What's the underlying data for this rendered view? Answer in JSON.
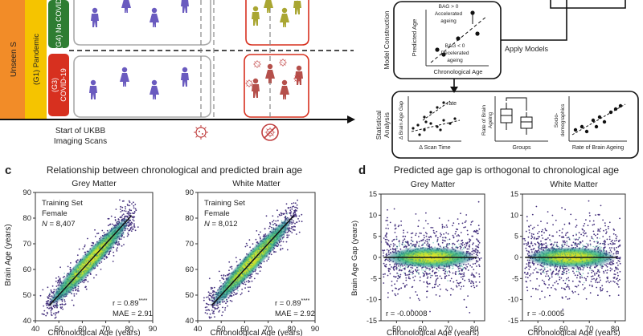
{
  "colors": {
    "orange": "#f28c28",
    "yellow": "#f5c400",
    "green": "#2e7d32",
    "red": "#d7301f",
    "person_blue": "#6a5bbf",
    "person_olive": "#a9a632",
    "person_red": "#b5504b",
    "virus": "#c04040",
    "viridis_dark": "#440154",
    "viridis_mid": "#21918c",
    "viridis_yellow": "#fde725"
  },
  "panel_a": {
    "unseen_label": "Unseen S",
    "g1_label": "(G1) Pandemic",
    "g4_label": "(G4) No COVID",
    "g3_label_1": "(G3)",
    "g3_label_2": "COVID-19",
    "start_label_1": "Start of UKBB",
    "start_label_2": "Imaging Scans"
  },
  "panel_b": {
    "model_construction": "Model Construction",
    "predicted_age": "Predicted Age",
    "chronological_age": "Chronological Age",
    "bag_pos_1": "BAG > 0",
    "bag_pos_2": "Accelerated",
    "bag_pos_3": "ageing",
    "bag_neg_1": "BAG < 0",
    "bag_neg_2": "Decelerated",
    "bag_neg_3": "ageing",
    "apply_models": "Apply Models",
    "statistical_analysis_1": "Statistical",
    "statistical_analysis_2": "Analysis",
    "delta_gap": "Δ Brain Age Gap",
    "rate": "rate",
    "delta_time": "Δ Scan Time",
    "rate_of_brain_1": "Rate of Brain",
    "rate_of_brain_2": "Ageing",
    "groups": "Groups",
    "socio_1": "Socio-",
    "socio_2": "demographics",
    "rate_of_brain_ageing": "Rate of Brain Ageing"
  },
  "panel_c": {
    "letter": "c",
    "title": "Relationship between chronological and predicted brain age",
    "ylabel": "Brain Age (years)",
    "xlabel": "Chronological Age (years)",
    "yticks": [
      "90",
      "80",
      "70",
      "60",
      "50",
      "40"
    ],
    "xticks": [
      "40",
      "50",
      "60",
      "70",
      "80",
      "90"
    ],
    "grey": {
      "subtitle": "Grey Matter",
      "ann_1": "Training Set",
      "ann_2": "Female",
      "ann_n_label": "N",
      "ann_n_value": " = 8,407",
      "r_text": "r = 0.89",
      "stars": "****",
      "mae_text": "MAE = 2.91"
    },
    "white": {
      "subtitle": "White Matter",
      "ann_1": "Training Set",
      "ann_2": "Female",
      "ann_n_label": "N",
      "ann_n_value": " = 8,012",
      "r_text": "r = 0.89",
      "stars": "****",
      "mae_text": "MAE = 2.92"
    }
  },
  "panel_d": {
    "letter": "d",
    "title": "Predicted age gap is orthogonal to chronological age",
    "ylabel": "Brain Age Gap (years)",
    "xlabel": "Chronological Age (years)",
    "yticks": [
      "15",
      "10",
      "5",
      "0",
      "-5",
      "-10",
      "-15"
    ],
    "xticks": [
      "50",
      "60",
      "70",
      "80"
    ],
    "grey": {
      "subtitle": "Grey Matter",
      "r_text": "r = -0.00008"
    },
    "white": {
      "subtitle": "White Matter",
      "r_text": "r = -0.0005"
    }
  },
  "chart_data": [
    {
      "type": "scatter",
      "title": "Grey Matter",
      "xlabel": "Chronological Age (years)",
      "ylabel": "Brain Age (years)",
      "xlim": [
        40,
        90
      ],
      "ylim": [
        40,
        90
      ],
      "fit_line": [
        [
          46,
          46
        ],
        [
          81,
          81
        ]
      ],
      "n": 8407,
      "r": 0.89,
      "mae": 2.91
    },
    {
      "type": "scatter",
      "title": "White Matter",
      "xlabel": "Chronological Age (years)",
      "ylabel": "Brain Age (years)",
      "xlim": [
        40,
        90
      ],
      "ylim": [
        40,
        90
      ],
      "fit_line": [
        [
          46,
          46
        ],
        [
          81,
          81
        ]
      ],
      "n": 8012,
      "r": 0.89,
      "mae": 2.92
    },
    {
      "type": "scatter",
      "title": "Grey Matter",
      "xlabel": "Chronological Age (years)",
      "ylabel": "Brain Age Gap (years)",
      "xlim": [
        44,
        84
      ],
      "ylim": [
        -15,
        15
      ],
      "fit_line": [
        [
          45,
          0
        ],
        [
          81,
          0
        ]
      ],
      "r": -8e-05
    },
    {
      "type": "scatter",
      "title": "White Matter",
      "xlabel": "Chronological Age (years)",
      "ylabel": "Brain Age Gap (years)",
      "xlim": [
        44,
        84
      ],
      "ylim": [
        -15,
        15
      ],
      "fit_line": [
        [
          45,
          0
        ],
        [
          81,
          0
        ]
      ],
      "r": -0.0005
    }
  ]
}
